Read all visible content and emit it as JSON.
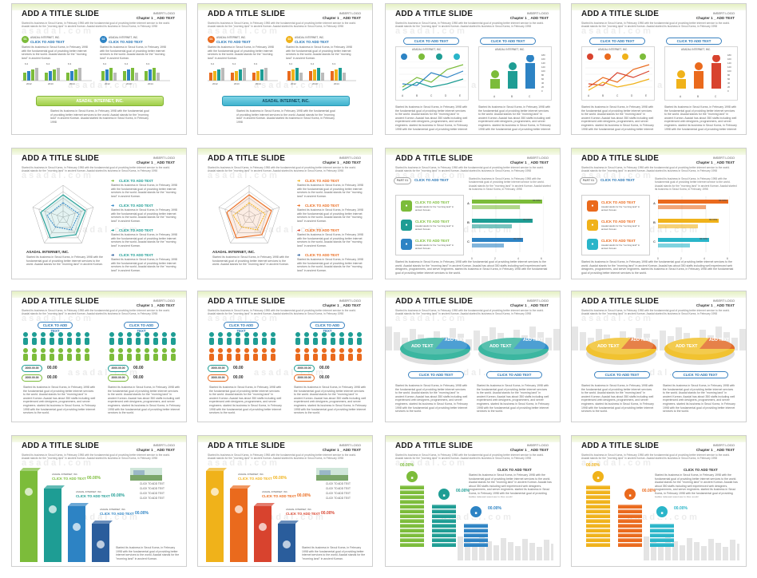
{
  "slide": {
    "title": "ADD A TITLE SLIDE",
    "logo": "INSERT LOGO",
    "chapter": "Chapter 1 _ ADD TEXT",
    "desc": "Started its business in Seoul Korea, in February 1998 with the fundamental goal of providing better internet service to the world. Asadal stands for the \"morning land\" in ancient Korean. Asadal started its business in Seoul Korea, in February 1998",
    "watermark": "asadal.com",
    "cta": "CLICK TO ADD TEXT",
    "company": "ASADAL INTERNET, INC.",
    "company_short": "ASADAL INTERNET, INC.",
    "percent": "00.00%",
    "pct_bar": "00.00%",
    "pct_short": "00.00",
    "date": "2000.00.00",
    "add_text": "ADD TEXT",
    "part": "PART 01",
    "body": "Started its business in Seoul Korea, in February 1998 with the fundamental goal of providing better internet services to the world. Asadal stands for the \"morning land\" in ancient Korean. Asadal has about 350 staffs including well experienced web designers, programmers, and server engineers. started its business in Seoul Korea, in February 1998 with the fundamental goal of providing better internet services to the world.",
    "body_short": "Started its business in Seoul Korea, in February 1998 with the fundamental goal of providing better internet services to the world. Asadal stands for the \"morning land\" in ancient Korean.",
    "banner_body": "Started its business in Seoul Korea, in February 1998 with the fundamental goal of providing better internet services to the world. Asadal stands for the \"morning land\" in ancient Korean. Asadal started its business in Seoul Korea, in February 1998",
    "mini_caption": "Asadal stands for the \"morning land\" in ancient Korean.",
    "years": [
      "2012",
      "2013",
      "2014"
    ],
    "axis_letters": [
      "A",
      "B",
      "C",
      "D",
      "E"
    ],
    "axis_abc": [
      "A",
      "B",
      "C"
    ],
    "bar_values": [
      "6.2",
      "6.4",
      "6.3"
    ],
    "y_ticks": [
      "180",
      "160",
      "140",
      "120",
      "100",
      "80",
      "60",
      "40",
      "20",
      "0"
    ],
    "x_ticks": [
      "0",
      "2",
      "4",
      "6"
    ],
    "step_items": [
      "CLICK TO ADD TEXT",
      "CLICK TO ADD TEXT",
      "CLICK TO ADD TEXT",
      "CLICK TO ADD TEXT",
      "CLICK TO ADD TEXT"
    ],
    "num_badges": [
      "01",
      "02"
    ]
  },
  "colors": {
    "blue": "#2d83c4",
    "green": "#7cbc3a",
    "teal": "#1e9d94",
    "orange": "#ea6a1d",
    "yellow": "#f0b21a",
    "red": "#d8432e",
    "cyan": "#2ab5c9",
    "navy": "#2a5d9c"
  }
}
